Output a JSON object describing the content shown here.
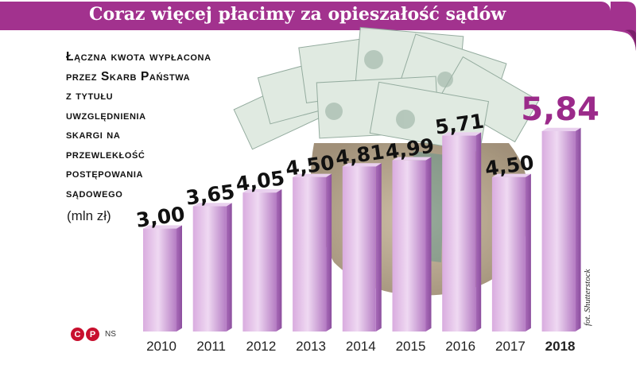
{
  "header": {
    "title": "Coraz więcej płacimy za opieszałość sądów"
  },
  "description": {
    "lines": [
      "Łączna kwota wypłacona",
      "przez Skarb Państwa",
      "z tytułu",
      "uwzględnienia",
      "skargi na",
      "przewlekłość",
      "postępowania",
      "sądowego"
    ],
    "unit": "(mln zł)"
  },
  "credit": "fot. Shutterstock",
  "logo": {
    "mark1": "C",
    "mark2": "P",
    "text": "NS"
  },
  "colors": {
    "title_bar": "#a2328e",
    "bar_light": "#e6c8ec",
    "bar_mid": "#c890d4",
    "bar_dark": "#a86ab8",
    "highlight_value": "#9b2a8a"
  },
  "chart_data": {
    "type": "bar",
    "categories": [
      "2010",
      "2011",
      "2012",
      "2013",
      "2014",
      "2015",
      "2016",
      "2017",
      "2018"
    ],
    "values": [
      3.0,
      3.65,
      4.05,
      4.5,
      4.81,
      4.99,
      5.71,
      4.5,
      5.84
    ],
    "value_labels": [
      "3,00",
      "3,65",
      "4,05",
      "4,50",
      "4,81",
      "4,99",
      "5,71",
      "4,50",
      "5,84"
    ],
    "highlight_index": 8,
    "ylabel": "(mln zł)",
    "ylim": [
      0,
      5.84
    ],
    "grid": false,
    "legend": "none"
  }
}
